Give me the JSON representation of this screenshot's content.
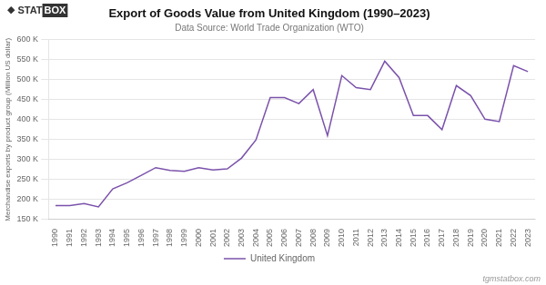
{
  "chart_data": {
    "type": "line",
    "title": "Export of Goods Value from United Kingdom (1990–2023)",
    "subtitle": "Data Source: World Trade Organization (WTO)",
    "ylabel": "Merchandise exports by product group (Million US dollar)",
    "annotations": [
      "◆",
      "STAT",
      "BOX",
      "tgmstatbox.com"
    ],
    "x": [
      1990,
      1991,
      1992,
      1993,
      1994,
      1995,
      1996,
      1997,
      1998,
      1999,
      2000,
      2001,
      2002,
      2003,
      2004,
      2005,
      2006,
      2007,
      2008,
      2009,
      2010,
      2011,
      2012,
      2013,
      2014,
      2015,
      2016,
      2017,
      2018,
      2019,
      2020,
      2021,
      2022,
      2023
    ],
    "series": [
      {
        "name": "United Kingdom",
        "color": "#7B52AB",
        "values": [
          185000,
          185000,
          190000,
          182000,
          227000,
          242000,
          261000,
          280000,
          273000,
          271000,
          280000,
          274000,
          277000,
          304000,
          349000,
          455000,
          455000,
          440000,
          475000,
          360000,
          510000,
          480000,
          475000,
          546000,
          505000,
          410000,
          410000,
          375000,
          485000,
          460000,
          401000,
          395000,
          535000,
          520000
        ]
      }
    ],
    "xlim": [
      1989.5,
      2023.5
    ],
    "xticks": [
      1990,
      1991,
      1992,
      1993,
      1994,
      1995,
      1996,
      1997,
      1998,
      1999,
      2000,
      2001,
      2002,
      2003,
      2004,
      2005,
      2006,
      2007,
      2008,
      2009,
      2010,
      2011,
      2012,
      2013,
      2014,
      2015,
      2016,
      2017,
      2018,
      2019,
      2020,
      2021,
      2022,
      2023
    ],
    "ylim": [
      150000,
      600000
    ],
    "yticks": [
      {
        "value": 150000,
        "label": "150 K"
      },
      {
        "value": 200000,
        "label": "200 K"
      },
      {
        "value": 250000,
        "label": "250 K"
      },
      {
        "value": 300000,
        "label": "300 K"
      },
      {
        "value": 350000,
        "label": "350 K"
      },
      {
        "value": 400000,
        "label": "400 K"
      },
      {
        "value": 450000,
        "label": "450 K"
      },
      {
        "value": 500000,
        "label": "500 K"
      },
      {
        "value": 550000,
        "label": "550 K"
      },
      {
        "value": 600000,
        "label": "600 K"
      }
    ],
    "grid": true,
    "legend": "bottom"
  }
}
